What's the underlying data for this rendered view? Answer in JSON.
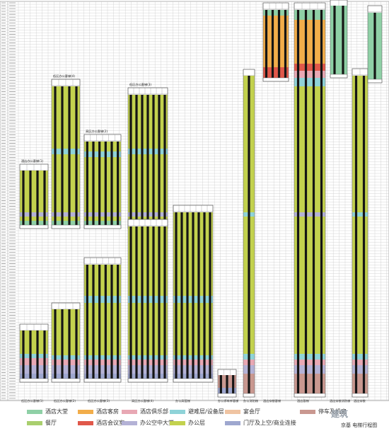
{
  "colors": {
    "hotel_lobby": "#8fd0a6",
    "dining": "#a9cf6e",
    "hotel_rooms": "#f2ad4a",
    "hotel_meeting": "#e0584a",
    "hotel_club": "#e8a8b4",
    "office_sky_lobby": "#b4b2d6",
    "refuge_mech": "#8fd3d8",
    "office": "#c3d24e",
    "banquet": "#f0c4a2",
    "lobby_retail": "#9ea7cf",
    "parking": "#c99890"
  },
  "legend": {
    "items": [
      {
        "key": "hotel_lobby",
        "label": "酒店大堂"
      },
      {
        "key": "hotel_rooms",
        "label": "酒店客房"
      },
      {
        "key": "hotel_club",
        "label": "酒店俱乐部"
      },
      {
        "key": "refuge_mech",
        "label": "避难层/设备层"
      },
      {
        "key": "banquet",
        "label": "宴会厅"
      },
      {
        "key": "parking",
        "label": "停车及机房"
      },
      {
        "key": "dining",
        "label": "餐厅"
      },
      {
        "key": "hotel_meeting",
        "label": "酒店会议室"
      },
      {
        "key": "office_sky_lobby",
        "label": "办公空中大堂"
      },
      {
        "key": "office",
        "label": "办公层"
      },
      {
        "key": "lobby_retail",
        "label": "门厅及上空/商业连接"
      }
    ]
  },
  "diagram_title": "京基 电梯行程图",
  "watermark": "建筑",
  "groups": [
    {
      "label": "酒店办公客梯(1)",
      "bottom_label": "低区办公客梯(1)"
    },
    {
      "label": "低区办公客梯(4)",
      "bottom_label": "低区办公客梯(2)"
    },
    {
      "label": "高区办公客梯(2)",
      "bottom_label": "低区办公客梯(3)"
    },
    {
      "label": "低区办公客梯(3)",
      "bottom_label": "高区办公客梯(4)"
    },
    {
      "label": "",
      "bottom_label": "办公高管梯"
    },
    {
      "label": "",
      "bottom_label": "办公停车库客梯"
    },
    {
      "label": "",
      "bottom_label": "办公消防梯"
    },
    {
      "label": "",
      "bottom_label": "酒店穿梭客梯"
    },
    {
      "label": "",
      "bottom_label": "酒店客梯"
    },
    {
      "label": "",
      "bottom_label": "酒店穿梭消防梯"
    },
    {
      "label": "",
      "bottom_label": "酒店穿梭"
    }
  ]
}
